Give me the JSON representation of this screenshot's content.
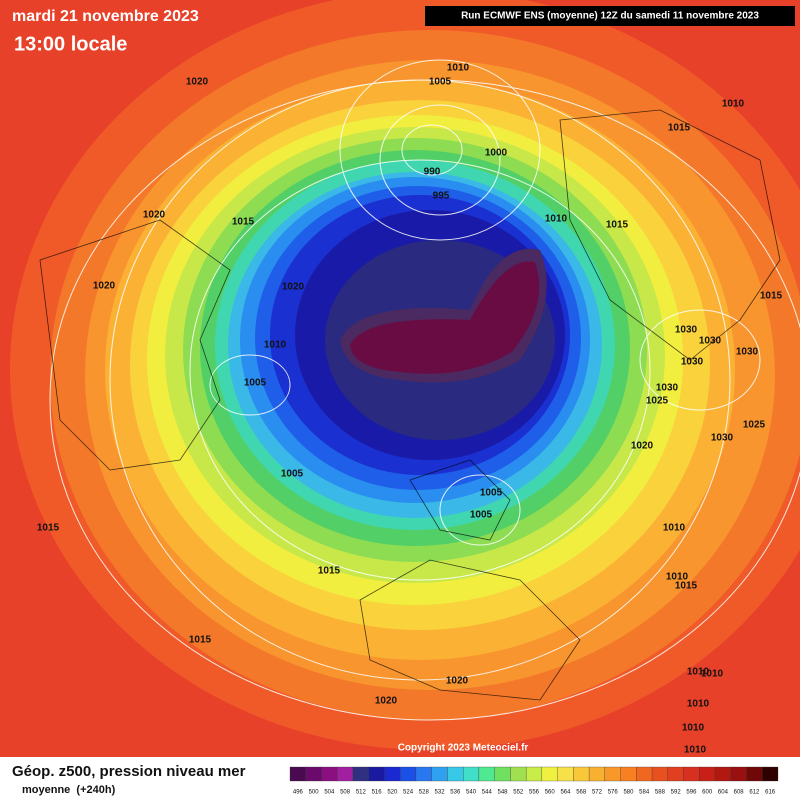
{
  "header": {
    "date": "mardi 21 novembre 2023",
    "time": "13:00 locale",
    "run": "Run ECMWF ENS (moyenne) 12Z du samedi 11 novembre 2023"
  },
  "copyright": "Copyright 2023 Meteociel.fr",
  "isobars": [
    "1010",
    "1005",
    "1020",
    "1010",
    "1015",
    "1000",
    "990",
    "995",
    "1020",
    "1015",
    "1010",
    "1015",
    "1020",
    "1020",
    "1015",
    "1030",
    "1030",
    "1030",
    "1030",
    "1010",
    "1005",
    "1030",
    "1025",
    "1030",
    "1025",
    "1020",
    "1005",
    "1005",
    "1005",
    "1015",
    "1010",
    "1015",
    "1010",
    "1015",
    "1015",
    "1010",
    "1010",
    "1020",
    "1020",
    "1010",
    "1010",
    "1010"
  ],
  "legend": {
    "title": "Géop. z500, pression niveau mer",
    "subtitle": "moyenne  (+240h)",
    "labels": [
      496,
      500,
      504,
      508,
      512,
      516,
      520,
      524,
      528,
      532,
      536,
      540,
      544,
      548,
      552,
      556,
      560,
      564,
      568,
      572,
      576,
      580,
      584,
      588,
      592,
      596,
      600,
      604,
      608,
      612,
      616
    ],
    "colors": [
      "#4a0a50",
      "#6a0a6a",
      "#8a1080",
      "#a020a0",
      "#303080",
      "#1a1aa0",
      "#1a2ad0",
      "#1a50e8",
      "#2a78f0",
      "#30a0f0",
      "#38c8e8",
      "#40e0c8",
      "#50e890",
      "#70e060",
      "#a0e050",
      "#c8ec48",
      "#f0f040",
      "#f8e048",
      "#f8c838",
      "#f8b030",
      "#f89828",
      "#f88020",
      "#f06820",
      "#e85020",
      "#e04020",
      "#d83020",
      "#c82018",
      "#b01810",
      "#981010",
      "#700808",
      "#300000"
    ]
  }
}
